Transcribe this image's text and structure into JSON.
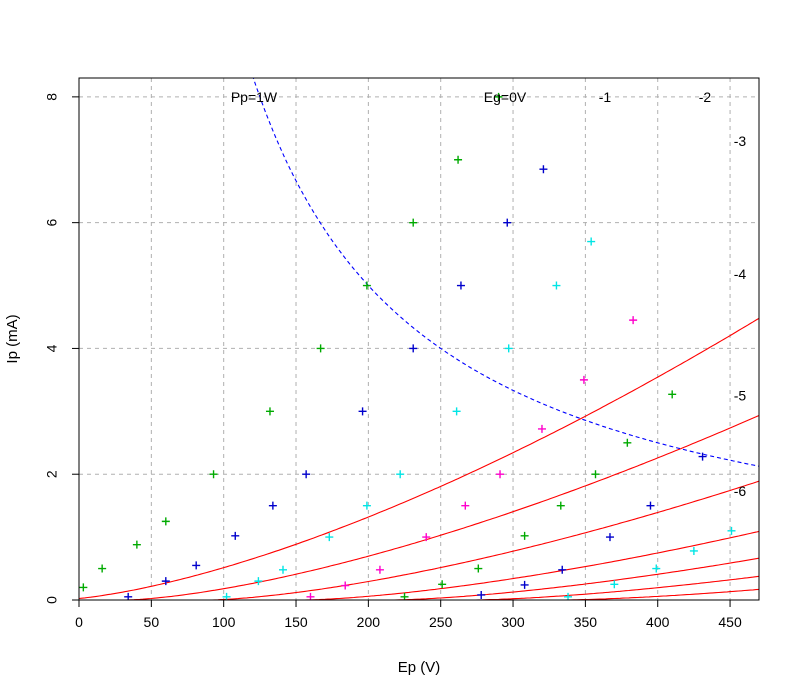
{
  "chart_data": {
    "type": "scatter",
    "title": "",
    "xlabel": "Ep (V)",
    "ylabel": "Ip (mA)",
    "xlim": [
      0,
      470
    ],
    "ylim": [
      0,
      8.3
    ],
    "xticks": [
      0,
      50,
      100,
      150,
      200,
      250,
      300,
      350,
      400,
      450
    ],
    "yticks": [
      0,
      2,
      4,
      6,
      8
    ],
    "grid": true,
    "curve_color": "#ff0000",
    "power_curve": {
      "label": "Pp=1W",
      "watts": 1,
      "color": "#0000ff",
      "style": "dashed"
    },
    "series": [
      {
        "label": "Eg=0V",
        "grid_v": 0,
        "marker_color": "#00aa00",
        "fit": {
          "offset": -14.5,
          "k": 0.00042
        },
        "points": [
          [
            3,
            0.2
          ],
          [
            16,
            0.5
          ],
          [
            40,
            0.88
          ],
          [
            60,
            1.25
          ],
          [
            93,
            2
          ],
          [
            132,
            3
          ],
          [
            167,
            4
          ],
          [
            199,
            5
          ],
          [
            231,
            6
          ],
          [
            262,
            7
          ],
          [
            290,
            8
          ]
        ]
      },
      {
        "label": "-1",
        "grid_v": -1,
        "marker_color": "#0000cc",
        "fit": {
          "offset": 32,
          "k": 0.00032
        },
        "points": [
          [
            34,
            0.05
          ],
          [
            60,
            0.3
          ],
          [
            81,
            0.55
          ],
          [
            108,
            1.02
          ],
          [
            134,
            1.5
          ],
          [
            157,
            2
          ],
          [
            196,
            3
          ],
          [
            231,
            4
          ],
          [
            264,
            5
          ],
          [
            296,
            6
          ],
          [
            321,
            6.85
          ]
        ]
      },
      {
        "label": "-2",
        "grid_v": -2,
        "marker_color": "#00e5e5",
        "fit": {
          "offset": 90,
          "k": 0.000255
        },
        "points": [
          [
            102,
            0.05
          ],
          [
            124,
            0.3
          ],
          [
            141,
            0.48
          ],
          [
            173,
            1
          ],
          [
            199,
            1.5
          ],
          [
            222,
            2
          ],
          [
            261,
            3
          ],
          [
            297,
            4
          ],
          [
            330,
            5
          ],
          [
            354,
            5.7
          ]
        ]
      },
      {
        "label": "-3",
        "grid_v": -3,
        "marker_color": "#ff00cc",
        "fit": {
          "offset": 155,
          "k": 0.000195
        },
        "points": [
          [
            160,
            0.05
          ],
          [
            184,
            0.23
          ],
          [
            208,
            0.48
          ],
          [
            240,
            1
          ],
          [
            267,
            1.5
          ],
          [
            291,
            2
          ],
          [
            320,
            2.72
          ],
          [
            349,
            3.5
          ],
          [
            383,
            4.45
          ]
        ]
      },
      {
        "label": "-4",
        "grid_v": -4,
        "marker_color": "#00aa00",
        "fit": {
          "offset": 216,
          "k": 0.000164
        },
        "points": [
          [
            225,
            0.05
          ],
          [
            251,
            0.25
          ],
          [
            276,
            0.5
          ],
          [
            308,
            1.02
          ],
          [
            333,
            1.5
          ],
          [
            357,
            2
          ],
          [
            379,
            2.5
          ],
          [
            410,
            3.27
          ]
        ]
      },
      {
        "label": "-5",
        "grid_v": -5,
        "marker_color": "#0000cc",
        "fit": {
          "offset": 272,
          "k": 0.000135
        },
        "points": [
          [
            278,
            0.08
          ],
          [
            308,
            0.24
          ],
          [
            334,
            0.48
          ],
          [
            367,
            1
          ],
          [
            395,
            1.5
          ],
          [
            431,
            2.28
          ]
        ]
      },
      {
        "label": "-6",
        "grid_v": -6,
        "marker_color": "#00e5e5",
        "fit": {
          "offset": 333,
          "k": 0.000105
        },
        "points": [
          [
            338,
            0.05
          ],
          [
            370,
            0.25
          ],
          [
            399,
            0.5
          ],
          [
            425,
            0.78
          ],
          [
            451,
            1.1
          ]
        ]
      }
    ]
  }
}
